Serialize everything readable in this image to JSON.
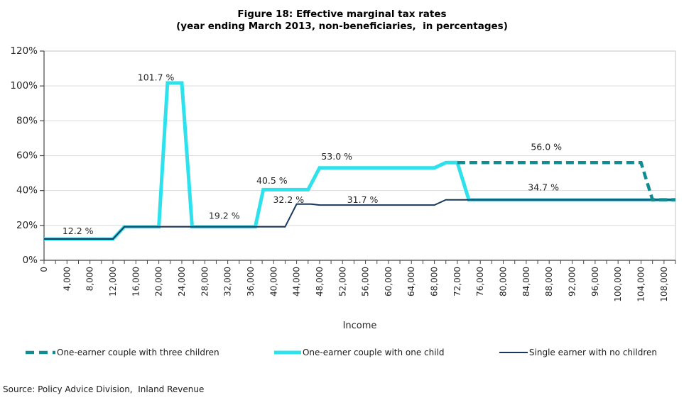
{
  "source": "Source: Policy Advice Division,  Inland Revenue",
  "chart_data": {
    "type": "line",
    "title": "Figure 18: Effective marginal tax rates",
    "subtitle": "(year ending March 2013, non-beneficiaries,  in percentages)",
    "xlabel": "Income",
    "ylabel": "",
    "xlim": [
      0,
      110000
    ],
    "ylim": [
      0,
      120
    ],
    "x_tick_step": 4000,
    "x_minor_tick_step": 2000,
    "grid": "horizontal-only",
    "legend_position": "bottom",
    "y_ticks": [
      0,
      20,
      40,
      60,
      80,
      100,
      120
    ],
    "y_tick_labels": [
      "0%",
      "20%",
      "40%",
      "60%",
      "80%",
      "100%",
      "120%"
    ],
    "x_tick_labels": [
      "0",
      "4,000",
      "8,000",
      "12,000",
      "16,000",
      "20,000",
      "24,000",
      "28,000",
      "32,000",
      "36,000",
      "40,000",
      "44,000",
      "48,000",
      "52,000",
      "56,000",
      "60,000",
      "64,000",
      "68,000",
      "72,000",
      "76,000",
      "80,000",
      "84,000",
      "88,000",
      "92,000",
      "96,000",
      "100,000",
      "104,000",
      "108,000"
    ],
    "series": [
      {
        "id": "three-children",
        "name": "One-earner couple with three children",
        "color": "#0f8d93",
        "style": "dashed",
        "width": 4.5,
        "points": [
          [
            72000,
            56.0
          ],
          [
            104000,
            56.0
          ],
          [
            106000,
            34.7
          ],
          [
            110000,
            34.7
          ]
        ]
      },
      {
        "id": "one-child",
        "name": "One-earner couple with one child",
        "color": "#2de2ec",
        "style": "solid",
        "width": 5,
        "points": [
          [
            0,
            12.2
          ],
          [
            12000,
            12.2
          ],
          [
            14000,
            19.2
          ],
          [
            20000,
            19.2
          ],
          [
            21500,
            101.7
          ],
          [
            24000,
            101.7
          ],
          [
            25800,
            19.2
          ],
          [
            36800,
            19.2
          ],
          [
            38200,
            40.5
          ],
          [
            46000,
            40.5
          ],
          [
            48000,
            53.0
          ],
          [
            68000,
            53.0
          ],
          [
            70000,
            56.0
          ],
          [
            72000,
            56.0
          ],
          [
            74000,
            34.7
          ],
          [
            110000,
            34.7
          ]
        ]
      },
      {
        "id": "no-children",
        "name": "Single earner with no children",
        "color": "#17375e",
        "style": "solid",
        "width": 2,
        "points": [
          [
            0,
            12.2
          ],
          [
            12000,
            12.2
          ],
          [
            14000,
            19.2
          ],
          [
            42000,
            19.2
          ],
          [
            44000,
            32.2
          ],
          [
            46500,
            32.2
          ],
          [
            48000,
            31.7
          ],
          [
            68000,
            31.7
          ],
          [
            70000,
            34.7
          ],
          [
            110000,
            34.7
          ]
        ]
      }
    ],
    "draw_order": [
      1,
      2,
      0
    ],
    "annotations": [
      {
        "text": "12.2 %",
        "x": 5900,
        "y": 16.9
      },
      {
        "text": "101.7 %",
        "x": 19500,
        "y": 105.0
      },
      {
        "text": "19.2 %",
        "x": 31400,
        "y": 25.6
      },
      {
        "text": "40.5 %",
        "x": 39700,
        "y": 45.8
      },
      {
        "text": "32.2 %",
        "x": 42600,
        "y": 34.8
      },
      {
        "text": "53.0 %",
        "x": 51000,
        "y": 59.5
      },
      {
        "text": "31.7 %",
        "x": 55500,
        "y": 34.8
      },
      {
        "text": "56.0 %",
        "x": 87500,
        "y": 65.1
      },
      {
        "text": "34.7 %",
        "x": 87000,
        "y": 41.8
      }
    ]
  }
}
